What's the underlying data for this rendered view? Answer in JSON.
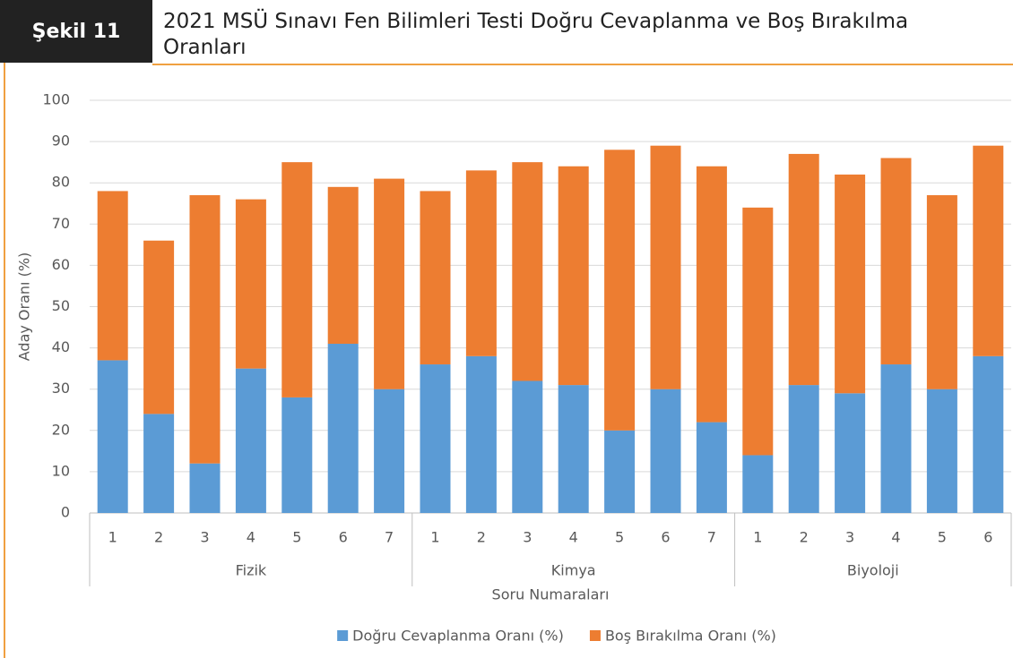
{
  "badge": "Şekil 11",
  "chart_data": {
    "type": "stacked_bar",
    "title": "2021 MSÜ Sınavı Fen Bilimleri Testi Doğru Cevaplanma ve Boş Bırakılma Oranları",
    "x_label": "Soru Numaraları",
    "y_label": "Aday Oranı (%)",
    "category_groups": [
      {
        "name": "Fizik",
        "categories": [
          "1",
          "2",
          "3",
          "4",
          "5",
          "6",
          "7"
        ]
      },
      {
        "name": "Kimya",
        "categories": [
          "1",
          "2",
          "3",
          "4",
          "5",
          "6",
          "7"
        ]
      },
      {
        "name": "Biyoloji",
        "categories": [
          "1",
          "2",
          "3",
          "4",
          "5",
          "6"
        ]
      }
    ],
    "series": [
      {
        "name": "Doğru Cevaplanma Oranı (%)",
        "color": "#5b9bd5",
        "values": [
          37,
          24,
          12,
          35,
          28,
          41,
          30,
          36,
          38,
          32,
          31,
          20,
          30,
          22,
          14,
          31,
          29,
          36,
          30,
          38
        ]
      },
      {
        "name": "Boş Bırakılma Oranı (%)",
        "color": "#ed7d31",
        "values": [
          41,
          42,
          65,
          41,
          57,
          38,
          51,
          42,
          45,
          53,
          53,
          68,
          59,
          62,
          60,
          56,
          53,
          50,
          47,
          51
        ]
      }
    ],
    "ylim": [
      0,
      100
    ],
    "yticks": [
      0,
      10,
      20,
      30,
      40,
      50,
      60,
      70,
      80,
      90,
      100
    ],
    "grid": true,
    "legend": "bottom"
  }
}
